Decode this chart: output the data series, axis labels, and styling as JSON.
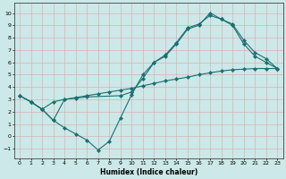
{
  "xlabel": "Humidex (Indice chaleur)",
  "bg_color": "#cce8e8",
  "line_color": "#1a7070",
  "xlim": [
    -0.5,
    23.5
  ],
  "ylim": [
    -1.8,
    10.8
  ],
  "xticks": [
    0,
    1,
    2,
    3,
    4,
    5,
    6,
    7,
    8,
    9,
    10,
    11,
    12,
    13,
    14,
    15,
    16,
    17,
    18,
    19,
    20,
    21,
    22,
    23
  ],
  "yticks": [
    -1,
    0,
    1,
    2,
    3,
    4,
    5,
    6,
    7,
    8,
    9,
    10
  ],
  "curve1_x": [
    0,
    1,
    2,
    3,
    4,
    5,
    6,
    7,
    8,
    9,
    10,
    11,
    12,
    13,
    14,
    15,
    16,
    17,
    18,
    19,
    20,
    21,
    22,
    23
  ],
  "curve1_y": [
    3.3,
    2.8,
    2.2,
    1.3,
    0.7,
    0.2,
    -0.3,
    -1.1,
    -0.4,
    1.5,
    3.4,
    5.0,
    6.0,
    6.5,
    7.5,
    8.7,
    9.0,
    10.0,
    9.5,
    9.0,
    7.5,
    6.5,
    6.0,
    5.5
  ],
  "curve2_x": [
    0,
    1,
    2,
    3,
    4,
    5,
    6,
    9,
    10,
    11,
    12,
    13,
    14,
    15,
    16,
    17,
    18,
    19,
    20,
    21,
    22,
    23
  ],
  "curve2_y": [
    3.3,
    2.8,
    2.2,
    1.3,
    3.0,
    3.1,
    3.2,
    3.3,
    3.6,
    4.7,
    6.0,
    6.6,
    7.6,
    8.8,
    9.1,
    9.8,
    9.5,
    9.1,
    7.8,
    6.8,
    6.3,
    5.5
  ],
  "curve3_x": [
    0,
    1,
    2,
    3,
    4,
    5,
    6,
    7,
    8,
    9,
    10,
    11,
    12,
    13,
    14,
    15,
    16,
    17,
    18,
    19,
    20,
    21,
    22,
    23
  ],
  "curve3_y": [
    3.3,
    2.8,
    2.2,
    2.8,
    3.0,
    3.15,
    3.3,
    3.45,
    3.6,
    3.75,
    3.9,
    4.1,
    4.3,
    4.5,
    4.65,
    4.8,
    5.0,
    5.15,
    5.3,
    5.4,
    5.45,
    5.5,
    5.5,
    5.5
  ]
}
